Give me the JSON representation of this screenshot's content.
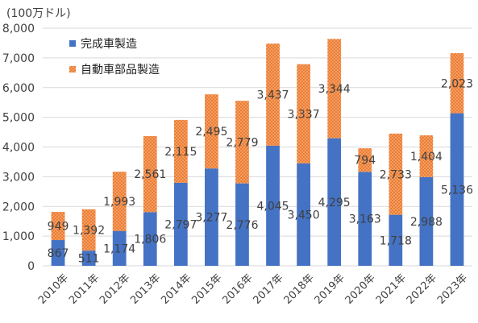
{
  "chart_data": {
    "type": "bar",
    "stacked": true,
    "unit_label": "(100万ドル)",
    "categories": [
      "2010年",
      "2011年",
      "2012年",
      "2013年",
      "2014年",
      "2015年",
      "2016年",
      "2017年",
      "2018年",
      "2019年",
      "2020年",
      "2021年",
      "2022年",
      "2023年"
    ],
    "series": [
      {
        "name": "完成車製造",
        "color": "#4472c4",
        "values": [
          867,
          511,
          1174,
          1806,
          2797,
          3277,
          2776,
          4045,
          3450,
          4295,
          3163,
          1718,
          2988,
          5136
        ],
        "labels": [
          "867",
          "511",
          "1,174",
          "1,806",
          "2,797",
          "3,277",
          "2,776",
          "4,045",
          "3,450",
          "4,295",
          "3,163",
          "1,718",
          "2,988",
          "5,136"
        ]
      },
      {
        "name": "自動車部品製造",
        "color": "#ed7d31",
        "pattern": "dotted",
        "values": [
          949,
          1392,
          1993,
          2561,
          2115,
          2495,
          2779,
          3437,
          3337,
          3344,
          794,
          2733,
          1404,
          2023
        ],
        "labels": [
          "949",
          "1,392",
          "1,993",
          "2,561",
          "2,115",
          "2,495",
          "2,779",
          "3,437",
          "3,337",
          "3,344",
          "794",
          "2,733",
          "1,404",
          "2,023"
        ]
      }
    ],
    "ylim": [
      0,
      8000
    ],
    "yticks": [
      0,
      1000,
      2000,
      3000,
      4000,
      5000,
      6000,
      7000,
      8000
    ],
    "ytick_labels": [
      "0",
      "1,000",
      "2,000",
      "3,000",
      "4,000",
      "5,000",
      "6,000",
      "7,000",
      "8,000"
    ],
    "grid": true,
    "legend_position": "top-left"
  }
}
